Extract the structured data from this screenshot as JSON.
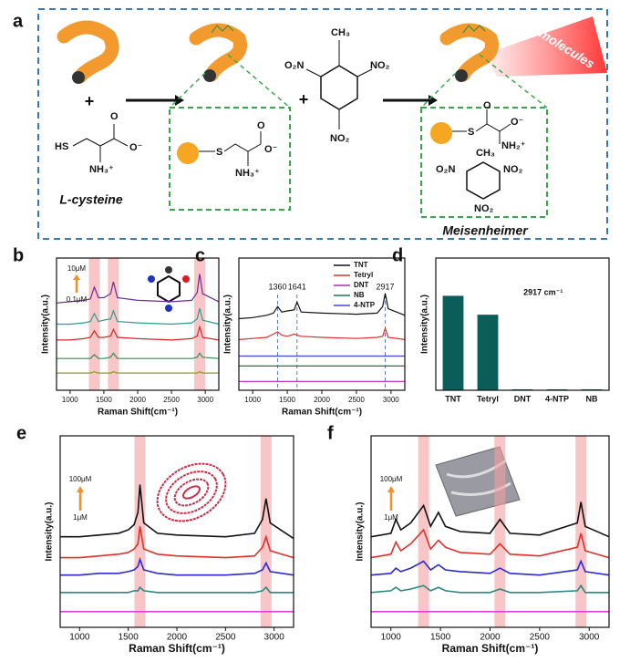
{
  "diagram": {
    "label": "a",
    "banner": "TNT molecules",
    "captions": [
      "L-cysteine",
      "Meisenheimer"
    ],
    "plus": [
      "+",
      "+"
    ],
    "chem": [
      "HS",
      "O",
      "O⁻",
      "NH₃⁺",
      "S",
      "O",
      "O⁻",
      "NH₃⁺",
      "CH₃",
      "O₂N",
      "NO₂",
      "NO₂",
      "S",
      "O",
      "O⁻",
      "CH₃",
      "NH₂⁺",
      "O₂N",
      "NO₂",
      "NO₂"
    ]
  },
  "chart_data": [
    {
      "type": "line",
      "panel": "b",
      "xlabel": "Raman Shift(cm⁻¹)",
      "ylabel": "Intensity(a.u.)",
      "x": [
        800,
        1000,
        1200,
        1300,
        1360,
        1420,
        1500,
        1600,
        1641,
        1700,
        2000,
        2500,
        2800,
        2880,
        2917,
        2960,
        3200
      ],
      "series": [
        {
          "color": "#6a2c9a",
          "values": [
            6.6,
            6.7,
            6.8,
            6.9,
            7.8,
            7.0,
            7.0,
            7.3,
            8.2,
            7.0,
            6.8,
            6.7,
            6.8,
            7.4,
            8.8,
            7.3,
            6.7
          ]
        },
        {
          "color": "#2a9d8f",
          "values": [
            5.0,
            5.0,
            5.1,
            5.2,
            5.8,
            5.2,
            5.3,
            5.4,
            6.0,
            5.2,
            5.1,
            5.0,
            5.1,
            5.4,
            6.2,
            5.3,
            5.0
          ]
        },
        {
          "color": "#d62728",
          "values": [
            3.8,
            3.8,
            3.9,
            4.0,
            4.5,
            4.0,
            4.0,
            4.1,
            4.6,
            4.0,
            3.9,
            3.8,
            3.9,
            4.1,
            4.8,
            4.0,
            3.8
          ]
        },
        {
          "color": "#2e8b57",
          "values": [
            2.4,
            2.4,
            2.4,
            2.4,
            2.7,
            2.4,
            2.4,
            2.5,
            2.8,
            2.4,
            2.4,
            2.4,
            2.4,
            2.5,
            2.8,
            2.5,
            2.4
          ]
        },
        {
          "color": "#8a9a2a",
          "values": [
            1.3,
            1.3,
            1.3,
            1.3,
            1.4,
            1.3,
            1.3,
            1.3,
            1.4,
            1.3,
            1.3,
            1.3,
            1.3,
            1.3,
            1.4,
            1.3,
            1.3
          ]
        }
      ],
      "xlim": [
        800,
        3200
      ],
      "xticks": [
        1000,
        1500,
        2000,
        2500,
        3000
      ],
      "ylim": [
        0,
        10
      ],
      "highlights": [
        1360,
        1641,
        2917
      ],
      "concentration": [
        "10μM",
        "0.1μM"
      ]
    },
    {
      "type": "line",
      "panel": "c",
      "xlabel": "Raman Shift(cm⁻¹)",
      "ylabel": "Intensity(a.u.)",
      "x": [
        800,
        1000,
        1200,
        1300,
        1360,
        1420,
        1500,
        1600,
        1641,
        1700,
        2000,
        2500,
        2800,
        2880,
        2917,
        2960,
        3200
      ],
      "series": [
        {
          "name": "TNT",
          "color": "#111111",
          "values": [
            6.5,
            6.6,
            6.8,
            7.0,
            7.6,
            7.1,
            7.2,
            7.3,
            8.0,
            7.1,
            7.0,
            6.9,
            7.0,
            7.6,
            8.8,
            7.4,
            6.8
          ]
        },
        {
          "name": "Tetryl",
          "color": "#e0302a",
          "values": [
            4.6,
            4.7,
            4.8,
            5.1,
            5.3,
            5.0,
            4.9,
            5.1,
            5.0,
            4.9,
            4.8,
            4.7,
            4.8,
            4.9,
            5.6,
            4.8,
            4.6
          ]
        },
        {
          "name": "DNT",
          "color": "#c020c0",
          "values": [
            0.8,
            0.8,
            0.8,
            0.8,
            0.8,
            0.8,
            0.8,
            0.8,
            0.8,
            0.8,
            0.8,
            0.8,
            0.8,
            0.8,
            0.8,
            0.8,
            0.8
          ]
        },
        {
          "name": "NB",
          "color": "#1a7a4a",
          "values": [
            2.2,
            2.2,
            2.2,
            2.2,
            2.2,
            2.2,
            2.2,
            2.2,
            2.2,
            2.2,
            2.2,
            2.2,
            2.2,
            2.2,
            2.2,
            2.2,
            2.2
          ]
        },
        {
          "name": "4-NTP",
          "color": "#3a4ad0",
          "values": [
            3.1,
            3.1,
            3.1,
            3.1,
            3.1,
            3.1,
            3.1,
            3.1,
            3.1,
            3.1,
            3.1,
            3.1,
            3.1,
            3.1,
            3.1,
            3.1,
            3.1
          ]
        }
      ],
      "xlim": [
        800,
        3200
      ],
      "xticks": [
        1000,
        1500,
        2000,
        2500,
        3000
      ],
      "ylim": [
        0,
        12
      ],
      "peaks": [
        1360,
        1641,
        2917
      ]
    },
    {
      "type": "bar",
      "panel": "d",
      "ylabel": "Intensity(a.u.)",
      "annotation": "2917 cm⁻¹",
      "categories": [
        "TNT",
        "Tetryl",
        "DNT",
        "4-NTP",
        "NB"
      ],
      "values": [
        1.0,
        0.8,
        0.01,
        0.01,
        0.01
      ],
      "color": "#0b5d5a",
      "ylim": [
        0,
        1.4
      ]
    },
    {
      "type": "line",
      "panel": "e",
      "xlabel": "Raman Shift(cm⁻¹)",
      "ylabel": "Intensity(a.u.)",
      "x": [
        800,
        1000,
        1200,
        1400,
        1500,
        1560,
        1600,
        1620,
        1660,
        1800,
        2000,
        2500,
        2800,
        2880,
        2917,
        2960,
        3200
      ],
      "series": [
        {
          "color": "#111111",
          "values": [
            5.2,
            5.2,
            5.3,
            5.4,
            5.6,
            5.9,
            6.6,
            8.2,
            6.0,
            5.4,
            5.3,
            5.2,
            5.4,
            6.2,
            7.4,
            6.0,
            5.1
          ]
        },
        {
          "color": "#e0302a",
          "values": [
            4.0,
            4.0,
            4.1,
            4.2,
            4.3,
            4.5,
            4.8,
            5.8,
            4.5,
            4.2,
            4.1,
            4.0,
            4.1,
            4.6,
            5.2,
            4.4,
            4.0
          ]
        },
        {
          "color": "#2a2ad0",
          "values": [
            3.0,
            3.0,
            3.1,
            3.1,
            3.2,
            3.3,
            3.5,
            3.9,
            3.3,
            3.1,
            3.0,
            3.0,
            3.1,
            3.3,
            3.7,
            3.2,
            3.0
          ]
        },
        {
          "color": "#2a8a80",
          "values": [
            2.0,
            2.0,
            2.0,
            2.0,
            2.0,
            2.1,
            2.1,
            2.3,
            2.1,
            2.0,
            2.0,
            2.0,
            2.0,
            2.1,
            2.3,
            2.0,
            2.0
          ]
        },
        {
          "color": "#e040e0",
          "values": [
            0.9,
            0.9,
            0.9,
            0.9,
            0.9,
            0.9,
            0.9,
            0.9,
            0.9,
            0.9,
            0.9,
            0.9,
            0.9,
            0.9,
            0.9,
            0.9,
            0.9
          ]
        }
      ],
      "xlim": [
        800,
        3200
      ],
      "xticks": [
        1000,
        1500,
        2000,
        2500,
        3000
      ],
      "ylim": [
        0,
        11
      ],
      "highlights": [
        1620,
        2917
      ],
      "concentration": [
        "100μM",
        "1μM"
      ]
    },
    {
      "type": "line",
      "panel": "f",
      "xlabel": "Raman Shift(cm⁻¹)",
      "ylabel": "Intensity(a.u.)",
      "x": [
        800,
        1000,
        1050,
        1100,
        1200,
        1330,
        1400,
        1480,
        1550,
        1700,
        2000,
        2100,
        2200,
        2500,
        2880,
        2917,
        2960,
        3200
      ],
      "series": [
        {
          "color": "#111111",
          "values": [
            5.2,
            5.4,
            6.2,
            5.6,
            6.0,
            7.0,
            5.8,
            6.6,
            5.8,
            5.5,
            5.4,
            6.2,
            5.4,
            5.3,
            6.0,
            7.2,
            5.8,
            5.2
          ]
        },
        {
          "color": "#e0302a",
          "values": [
            4.0,
            4.2,
            4.9,
            4.4,
            4.8,
            5.6,
            4.5,
            5.0,
            4.6,
            4.3,
            4.2,
            4.8,
            4.2,
            4.1,
            4.6,
            5.4,
            4.4,
            4.0
          ]
        },
        {
          "color": "#2a2ad0",
          "values": [
            3.0,
            3.1,
            3.4,
            3.2,
            3.4,
            3.8,
            3.3,
            3.6,
            3.3,
            3.2,
            3.1,
            3.4,
            3.1,
            3.0,
            3.3,
            3.8,
            3.2,
            3.0
          ]
        },
        {
          "color": "#2a8a80",
          "values": [
            2.0,
            2.1,
            2.3,
            2.1,
            2.2,
            2.4,
            2.1,
            2.3,
            2.1,
            2.0,
            2.0,
            2.2,
            2.0,
            2.0,
            2.1,
            2.4,
            2.0,
            2.0
          ]
        },
        {
          "color": "#e040e0",
          "values": [
            0.9,
            0.9,
            0.9,
            0.9,
            0.9,
            0.9,
            0.9,
            0.9,
            0.9,
            0.9,
            0.9,
            0.9,
            0.9,
            0.9,
            0.9,
            0.9,
            0.9,
            0.9
          ]
        }
      ],
      "xlim": [
        800,
        3200
      ],
      "xticks": [
        1000,
        1500,
        2000,
        2500,
        3000
      ],
      "ylim": [
        0,
        11
      ],
      "highlights": [
        1330,
        2100,
        2917
      ],
      "concentration": [
        "100μM",
        "1μM"
      ]
    }
  ]
}
